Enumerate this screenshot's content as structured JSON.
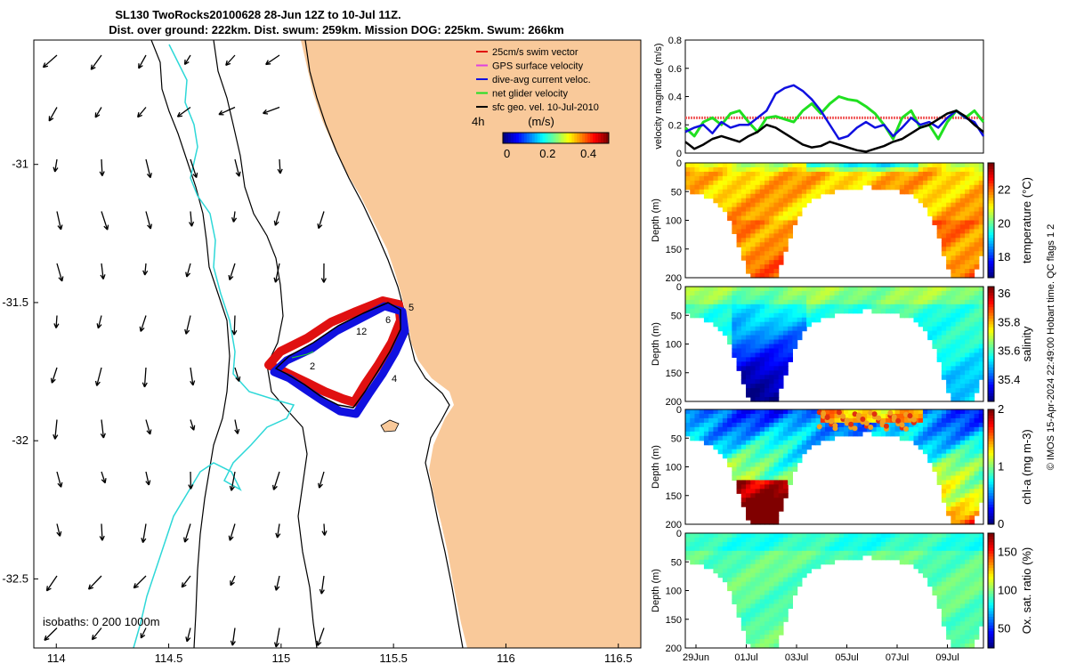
{
  "title": {
    "line1": "SL130 TwoRocks20100628 28-Jun 12Z to 10-Jul 11Z.",
    "line2": "Dist. over ground: 222km. Dist. swum: 259km. Mission DOG: 225km. Swum: 266km"
  },
  "map": {
    "xticks": [
      "114",
      "114.5",
      "115",
      "115.5",
      "116",
      "116.5"
    ],
    "xtick_values": [
      114,
      114.5,
      115,
      115.5,
      116,
      116.5
    ],
    "yticks": [
      "-31",
      "-31.5",
      "-32",
      "-32.5"
    ],
    "ytick_values": [
      -31,
      -31.5,
      -32,
      -32.5
    ],
    "xlim": [
      113.9,
      116.6
    ],
    "ylim": [
      -32.75,
      -30.55
    ],
    "isobath_note": "isobaths: 0   200  1000m",
    "legend": [
      {
        "label": "25cm/s swim vector",
        "color": "#e01010"
      },
      {
        "label": "GPS surface velocity",
        "color": "#e040e0"
      },
      {
        "label": "dive-avg current veloc.",
        "color": "#1010e0"
      },
      {
        "label": "net glider velocity",
        "color": "#20e020"
      },
      {
        "label": "sfc geo. vel. 10-Jul-2010",
        "color": "#000000"
      }
    ],
    "colorbar": {
      "label_left": "4h",
      "unit": "(m/s)",
      "ticks": [
        "0",
        "0.2",
        "0.4"
      ]
    },
    "track_labels": [
      "5",
      "6",
      "12",
      "2",
      "4"
    ],
    "land_color": "#f9c99a"
  },
  "timeseries": {
    "ylabel": "velocity magnitude (m/s)",
    "yticks": [
      "0",
      "0.2",
      "0.4",
      "0.6",
      "0.8"
    ],
    "ylim": [
      0,
      0.8
    ],
    "swim_ref": 0.25,
    "series": [
      {
        "name": "net glider velocity",
        "color": "#20e020",
        "values": [
          0.18,
          0.12,
          0.22,
          0.25,
          0.2,
          0.28,
          0.3,
          0.22,
          0.15,
          0.25,
          0.26,
          0.24,
          0.22,
          0.3,
          0.35,
          0.28,
          0.35,
          0.4,
          0.38,
          0.37,
          0.33,
          0.28,
          0.2,
          0.1,
          0.25,
          0.3,
          0.18,
          0.2,
          0.1,
          0.22,
          0.3,
          0.25,
          0.3,
          0.22
        ]
      },
      {
        "name": "dive-avg current veloc.",
        "color": "#1010e0",
        "values": [
          0.15,
          0.18,
          0.2,
          0.14,
          0.22,
          0.18,
          0.2,
          0.2,
          0.25,
          0.3,
          0.42,
          0.46,
          0.48,
          0.44,
          0.38,
          0.3,
          0.2,
          0.1,
          0.12,
          0.18,
          0.22,
          0.18,
          0.2,
          0.12,
          0.18,
          0.25,
          0.2,
          0.22,
          0.18,
          0.25,
          0.3,
          0.25,
          0.22,
          0.12
        ]
      },
      {
        "name": "sfc geo. vel.",
        "color": "#000000",
        "values": [
          0.08,
          0.03,
          0.06,
          0.1,
          0.12,
          0.1,
          0.08,
          0.12,
          0.15,
          0.2,
          0.18,
          0.14,
          0.1,
          0.06,
          0.04,
          0.05,
          0.08,
          0.06,
          0.04,
          0.02,
          0.01,
          0.03,
          0.05,
          0.08,
          0.1,
          0.14,
          0.18,
          0.2,
          0.24,
          0.28,
          0.3,
          0.26,
          0.2,
          0.15
        ]
      }
    ]
  },
  "sections": [
    {
      "name": "temperature",
      "cbar_label": "temperature (°C)",
      "cticks": [
        "18",
        "20",
        "22"
      ],
      "cvals": [
        18,
        20,
        22
      ],
      "crange": [
        16.8,
        23.6
      ]
    },
    {
      "name": "salinity",
      "cbar_label": "salinity",
      "cticks": [
        "35.4",
        "35.6",
        "35.8",
        "36"
      ],
      "cvals": [
        35.4,
        35.6,
        35.8,
        36.0
      ],
      "crange": [
        35.25,
        36.05
      ]
    },
    {
      "name": "chl-a",
      "cbar_label": "chl-a (mg m-3)",
      "cticks": [
        "0",
        "1",
        "2"
      ],
      "cvals": [
        0,
        1,
        2
      ],
      "crange": [
        0,
        2
      ]
    },
    {
      "name": "oxygen",
      "cbar_label": "Ox. sat. ratio (%)",
      "cticks": [
        "50",
        "100",
        "150"
      ],
      "cvals": [
        50,
        100,
        150
      ],
      "crange": [
        25,
        175
      ]
    }
  ],
  "section_axis": {
    "ylabel": "Depth (m)",
    "yticks": [
      "0",
      "50",
      "100",
      "150",
      "200"
    ],
    "yvals": [
      0,
      50,
      100,
      150,
      200
    ]
  },
  "xdates": [
    "29Jun",
    "01Jul",
    "03Jul",
    "05Jul",
    "07Jul",
    "09Jul"
  ],
  "credit": "© IMOS 15-Apr-2024 22:49:00 Hobart time. QC flags 1  2",
  "chart_data": {
    "type": "line",
    "title": "SL130 TwoRocks20100628 28-Jun 12Z to 10-Jul 11Z.",
    "xlabel": "",
    "ylabel": "velocity magnitude (m/s)",
    "ylim": [
      0,
      0.8
    ],
    "x": [
      "29Jun",
      "01Jul",
      "03Jul",
      "05Jul",
      "07Jul",
      "09Jul"
    ]
  }
}
